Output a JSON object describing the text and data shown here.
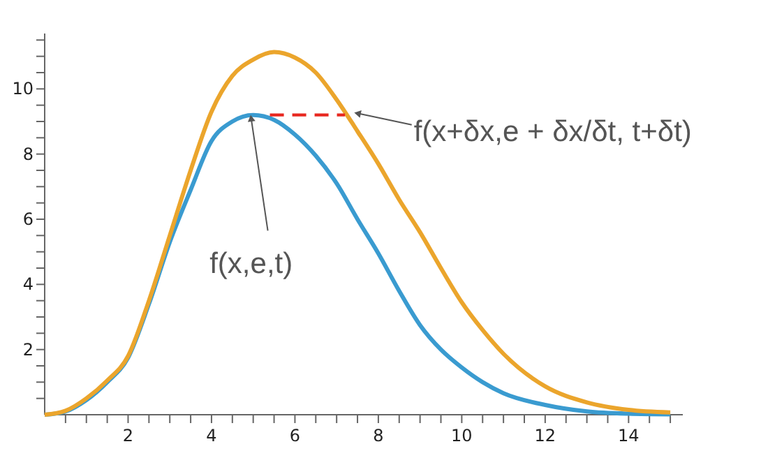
{
  "chart_data": {
    "type": "line",
    "series": [
      {
        "color": "#3a9bd0",
        "x": [
          0,
          0.5,
          1,
          1.5,
          2,
          2.5,
          3,
          3.5,
          4,
          4.5,
          5,
          5.5,
          6,
          6.5,
          7,
          7.5,
          8,
          8.5,
          9,
          9.5,
          10,
          10.5,
          11,
          12,
          13,
          14,
          15
        ],
        "values": [
          0,
          0.1,
          0.45,
          1.0,
          1.75,
          3.4,
          5.3,
          6.9,
          8.4,
          9.0,
          9.2,
          9.05,
          8.6,
          7.95,
          7.1,
          6.0,
          4.95,
          3.8,
          2.75,
          2.0,
          1.45,
          1.0,
          0.66,
          0.3,
          0.1,
          0.03,
          0.01
        ]
      },
      {
        "color": "#eba52c",
        "x": [
          0,
          0.5,
          1,
          1.5,
          2,
          2.5,
          3,
          3.5,
          4,
          4.5,
          5,
          5.5,
          6,
          6.5,
          7,
          7.5,
          8,
          8.5,
          9,
          9.5,
          10,
          10.5,
          11,
          12,
          13,
          14,
          15
        ],
        "values": [
          0,
          0.12,
          0.5,
          1.05,
          1.8,
          3.5,
          5.5,
          7.5,
          9.3,
          10.4,
          10.9,
          11.13,
          10.96,
          10.5,
          9.67,
          8.7,
          7.7,
          6.6,
          5.6,
          4.5,
          3.45,
          2.6,
          1.87,
          0.87,
          0.38,
          0.15,
          0.07
        ]
      },
      {
        "color": "#e8271f",
        "line_style": "dashed",
        "x": [
          5.4,
          7.2
        ],
        "values": [
          9.2,
          9.2
        ]
      }
    ],
    "annotations": [
      {
        "text": "f(x,e,t)",
        "x": 4.95,
        "y": 9.1
      },
      {
        "text": "f(x+δx,e + δx/δt,  t+δt)",
        "x": 7.5,
        "y": 9.25
      }
    ],
    "xlim": [
      0,
      15.3
    ],
    "ylim": [
      0,
      11.7
    ],
    "xticks": [
      {
        "value": 0.5,
        "label": null
      },
      {
        "value": 1,
        "label": null
      },
      {
        "value": 1.5,
        "label": null
      },
      2,
      {
        "value": 2.5,
        "label": null
      },
      {
        "value": 3,
        "label": null
      },
      {
        "value": 3.5,
        "label": null
      },
      4,
      {
        "value": 4.5,
        "label": null
      },
      {
        "value": 5,
        "label": null
      },
      {
        "value": 5.5,
        "label": null
      },
      6,
      {
        "value": 6.5,
        "label": null
      },
      {
        "value": 7,
        "label": null
      },
      {
        "value": 7.5,
        "label": null
      },
      8,
      {
        "value": 8.5,
        "label": null
      },
      {
        "value": 9,
        "label": null
      },
      {
        "value": 9.5,
        "label": null
      },
      10,
      {
        "value": 10.5,
        "label": null
      },
      {
        "value": 11,
        "label": null
      },
      {
        "value": 11.5,
        "label": null
      },
      12,
      {
        "value": 12.5,
        "label": null
      },
      {
        "value": 13,
        "label": null
      },
      {
        "value": 13.5,
        "label": null
      },
      14,
      {
        "value": 14.5,
        "label": null
      },
      {
        "value": 15,
        "label": null
      }
    ],
    "yticks": [
      {
        "value": 0.5,
        "label": null
      },
      {
        "value": 1,
        "label": null
      },
      {
        "value": 1.5,
        "label": null
      },
      2,
      {
        "value": 2.5,
        "label": null
      },
      {
        "value": 3,
        "label": null
      },
      {
        "value": 3.5,
        "label": null
      },
      4,
      {
        "value": 4.5,
        "label": null
      },
      {
        "value": 5,
        "label": null
      },
      {
        "value": 5.5,
        "label": null
      },
      6,
      {
        "value": 6.5,
        "label": null
      },
      {
        "value": 7,
        "label": null
      },
      {
        "value": 7.5,
        "label": null
      },
      8,
      {
        "value": 8.5,
        "label": null
      },
      {
        "value": 9,
        "label": null
      },
      {
        "value": 9.5,
        "label": null
      },
      10,
      {
        "value": 10.5,
        "label": null
      },
      {
        "value": 11,
        "label": null
      },
      {
        "value": 11.5,
        "label": null
      }
    ],
    "grid": false
  }
}
